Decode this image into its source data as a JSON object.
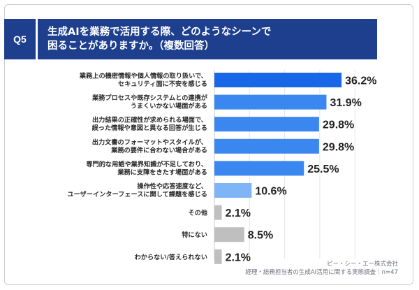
{
  "question": {
    "number": "Q5",
    "line1": "生成AIを業務で活用する際、どのようなシーンで",
    "line2": "困ることがありますか。（複数回答）"
  },
  "source": {
    "company": "ピー・シー・エー株式会社",
    "survey": "経理・総務担当者の生成AI活用に関する実態調査｜n=47"
  },
  "colors": {
    "header_bg": "#1d3f8e",
    "bar_top": "#1767e6",
    "bar_high": "#3a87f0",
    "bar_mid": "#5e9ef3",
    "bar_low": "#7fb4f6",
    "bar_other": "#bfbfbf"
  },
  "chart_data": {
    "type": "bar",
    "orientation": "horizontal",
    "unit": "%",
    "xlim": [
      0,
      40
    ],
    "grid": true,
    "categories": [
      [
        "業務上の機密情報や個人情報の取り扱いで、",
        "セキュリティ面に不安を感じる"
      ],
      [
        "業務プロセスや既存システムとの連携が",
        "うまくいかない場面がある"
      ],
      [
        "出力結果の正確性が求められる場面で、",
        "誤った情報や意図と異なる回答が生じる"
      ],
      [
        "出力文書のフォーマットやスタイルが、",
        "業務の要件に合わない場合がある"
      ],
      [
        "専門的な用語や業界知識が不足しており、",
        "業務に支障をきたす場面がある"
      ],
      [
        "操作性や応答速度など、",
        "ユーザーインターフェースに関して課題を感じる"
      ],
      [
        "その他"
      ],
      [
        "特にない"
      ],
      [
        "わからない/答えられない"
      ]
    ],
    "values": [
      36.2,
      31.9,
      29.8,
      29.8,
      25.5,
      10.6,
      2.1,
      8.5,
      2.1
    ],
    "value_labels": [
      "36.2%",
      "31.9%",
      "29.8%",
      "29.8%",
      "25.5%",
      "10.6%",
      "2.1%",
      "8.5%",
      "2.1%"
    ],
    "bar_color_keys": [
      "bar_top",
      "bar_high",
      "bar_high",
      "bar_high",
      "bar_high",
      "bar_low",
      "bar_other",
      "bar_other",
      "bar_other"
    ]
  }
}
